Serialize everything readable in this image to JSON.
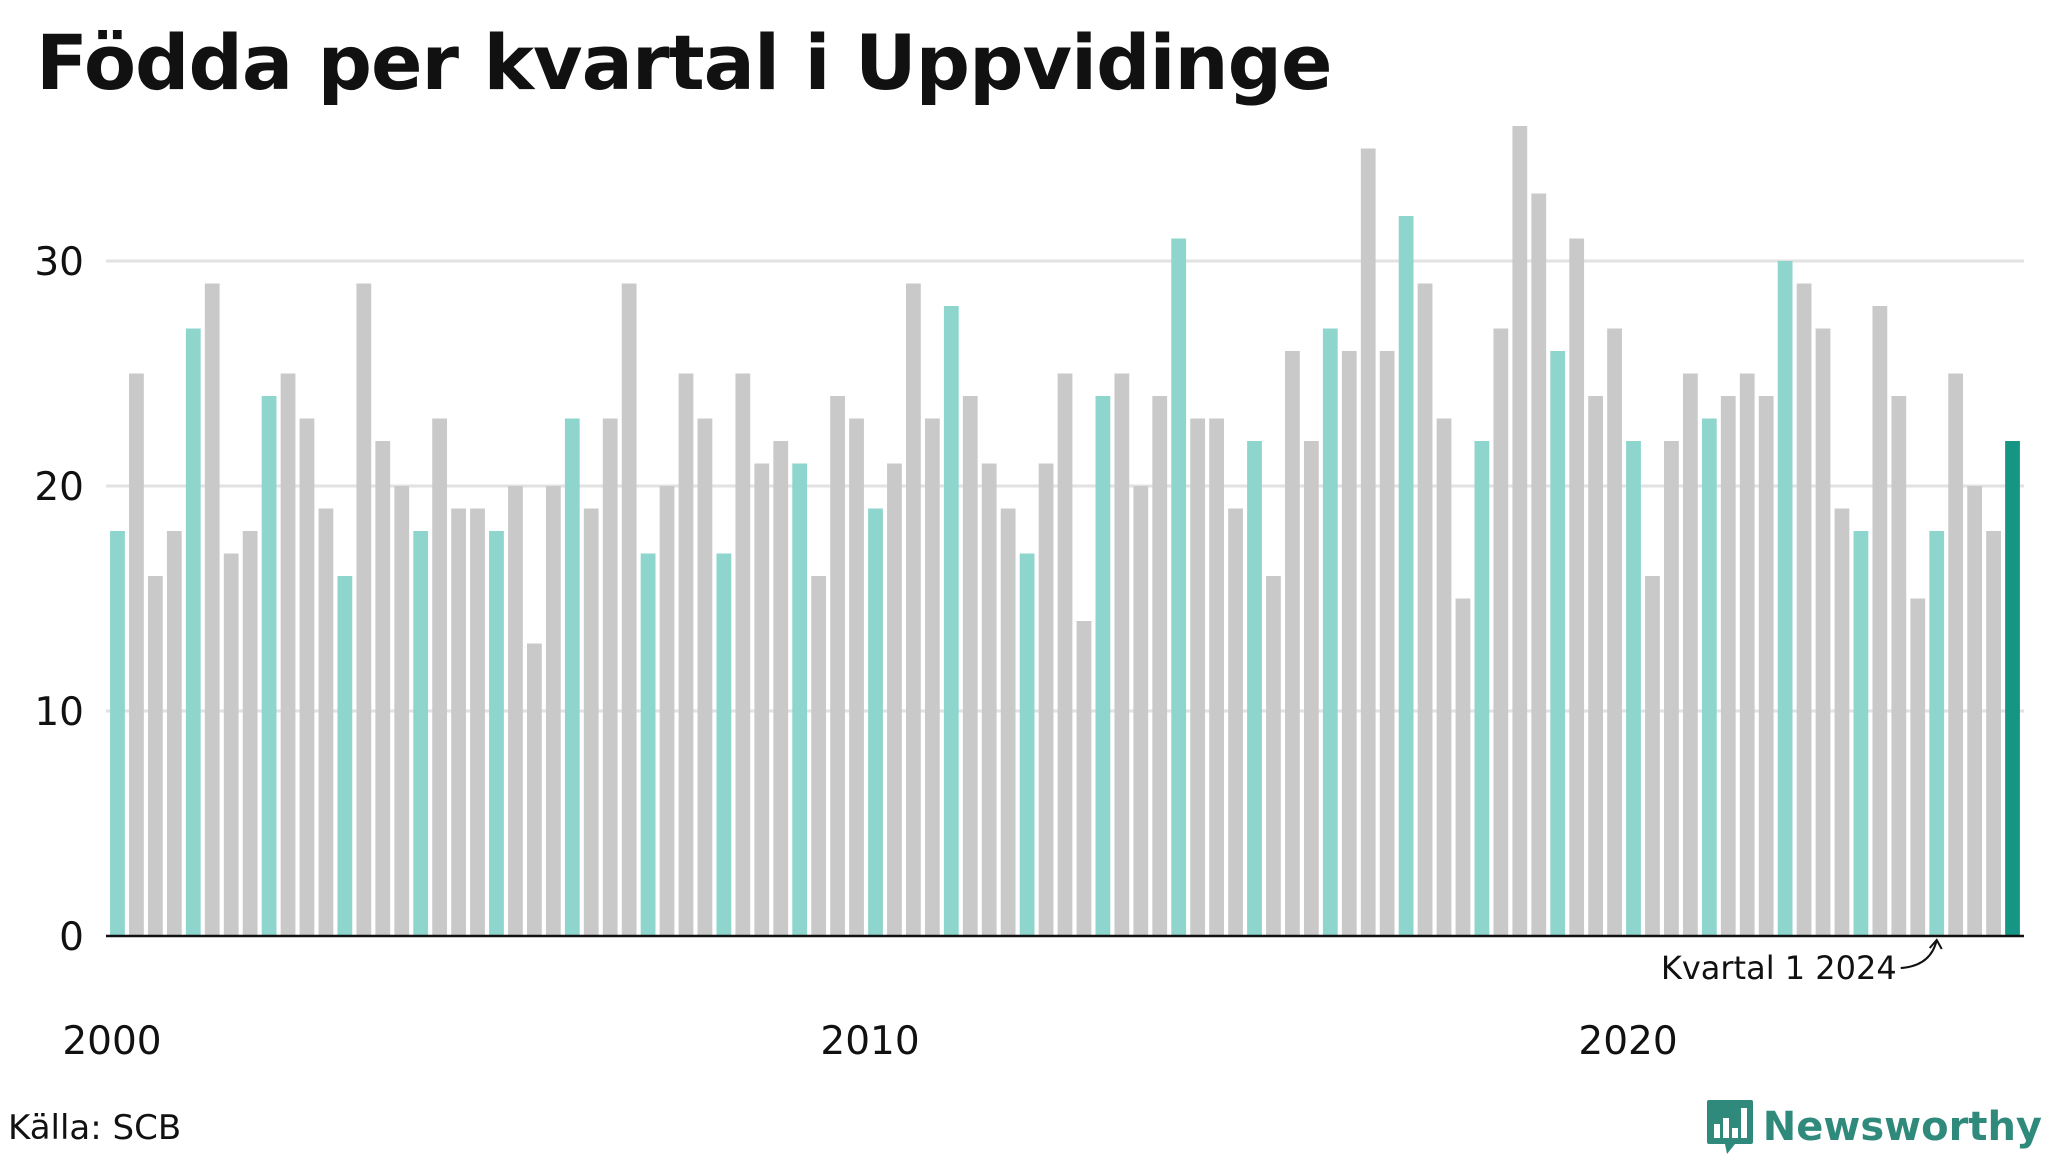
{
  "colors": {
    "q1": "#8dd5cd",
    "other": "#c9c9c9",
    "latest": "#159684",
    "grid": "#e2e2e2",
    "brand": "#2f8a7c"
  },
  "source": "Källa: SCB",
  "brand": {
    "name": "Newsworthy",
    "icon": "bar-chart-bubble-icon"
  },
  "chart_data": {
    "type": "bar",
    "title": "Födda per kvartal i Uppvidinge",
    "xlabel": "",
    "ylabel": "",
    "ylim": [
      0,
      36
    ],
    "yticks": [
      0,
      10,
      20,
      30
    ],
    "xticks": [
      "2000",
      "2010",
      "2020"
    ],
    "grid": true,
    "annotation": {
      "text": "Kvartal 1 2024",
      "target": "2024 Q1"
    },
    "x": [
      "2000 Q1",
      "2000 Q2",
      "2000 Q3",
      "2000 Q4",
      "2001 Q1",
      "2001 Q2",
      "2001 Q3",
      "2001 Q4",
      "2002 Q1",
      "2002 Q2",
      "2002 Q3",
      "2002 Q4",
      "2003 Q1",
      "2003 Q2",
      "2003 Q3",
      "2003 Q4",
      "2004 Q1",
      "2004 Q2",
      "2004 Q3",
      "2004 Q4",
      "2005 Q1",
      "2005 Q2",
      "2005 Q3",
      "2005 Q4",
      "2006 Q1",
      "2006 Q2",
      "2006 Q3",
      "2006 Q4",
      "2007 Q1",
      "2007 Q2",
      "2007 Q3",
      "2007 Q4",
      "2008 Q1",
      "2008 Q2",
      "2008 Q3",
      "2008 Q4",
      "2009 Q1",
      "2009 Q2",
      "2009 Q3",
      "2009 Q4",
      "2010 Q1",
      "2010 Q2",
      "2010 Q3",
      "2010 Q4",
      "2011 Q1",
      "2011 Q2",
      "2011 Q3",
      "2011 Q4",
      "2012 Q1",
      "2012 Q2",
      "2012 Q3",
      "2012 Q4",
      "2013 Q1",
      "2013 Q2",
      "2013 Q3",
      "2013 Q4",
      "2014 Q1",
      "2014 Q2",
      "2014 Q3",
      "2014 Q4",
      "2015 Q1",
      "2015 Q2",
      "2015 Q3",
      "2015 Q4",
      "2016 Q1",
      "2016 Q2",
      "2016 Q3",
      "2016 Q4",
      "2017 Q1",
      "2017 Q2",
      "2017 Q3",
      "2017 Q4",
      "2018 Q1",
      "2018 Q2",
      "2018 Q3",
      "2018 Q4",
      "2019 Q1",
      "2019 Q2",
      "2019 Q3",
      "2019 Q4",
      "2020 Q1",
      "2020 Q2",
      "2020 Q3",
      "2020 Q4",
      "2021 Q1",
      "2021 Q2",
      "2021 Q3",
      "2021 Q4",
      "2022 Q1",
      "2022 Q2",
      "2022 Q3",
      "2022 Q4",
      "2023 Q1",
      "2023 Q2",
      "2023 Q3",
      "2023 Q4",
      "2024 Q1",
      "2024 Q2",
      "2024 Q3",
      "2024 Q4",
      "2025 Q1"
    ],
    "values": [
      18,
      25,
      16,
      18,
      27,
      29,
      17,
      18,
      24,
      25,
      23,
      19,
      16,
      29,
      22,
      20,
      18,
      23,
      19,
      19,
      18,
      20,
      13,
      20,
      23,
      19,
      23,
      29,
      17,
      20,
      25,
      23,
      17,
      25,
      21,
      22,
      21,
      16,
      24,
      23,
      19,
      21,
      29,
      23,
      28,
      24,
      21,
      19,
      17,
      21,
      25,
      14,
      24,
      25,
      20,
      24,
      31,
      23,
      23,
      19,
      22,
      16,
      26,
      22,
      27,
      26,
      35,
      26,
      32,
      29,
      23,
      15,
      22,
      27,
      36,
      33,
      26,
      31,
      24,
      27,
      22,
      16,
      22,
      25,
      23,
      24,
      25,
      24,
      30,
      29,
      27,
      19,
      18,
      28,
      24,
      15,
      18,
      25,
      20,
      18,
      22
    ]
  }
}
